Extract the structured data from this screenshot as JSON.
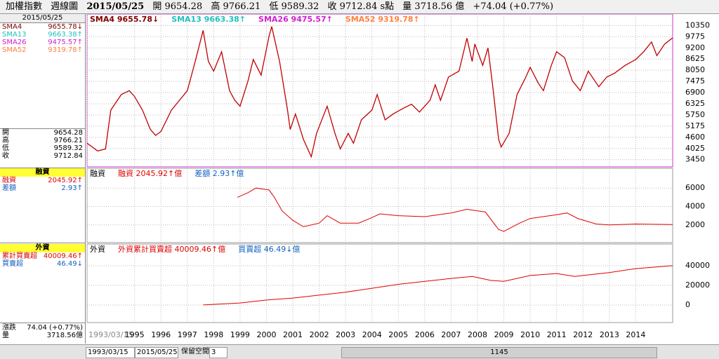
{
  "header": {
    "index": "加權指數",
    "period": "週線圖",
    "date": "2015/05/25",
    "open": "開 9654.28",
    "high": "高 9766.21",
    "low": "低 9589.32",
    "close": "收 9712.84 s點",
    "volume": "量 3718.56 億",
    "change": "+74.04 (+0.77%)"
  },
  "left_panel": {
    "date": "2015/05/25",
    "sma": [
      {
        "name": "SMA4",
        "value": "9655.78↓"
      },
      {
        "name": "SMA13",
        "value": "9663.38↑"
      },
      {
        "name": "SMA26",
        "value": "9475.57↑"
      },
      {
        "name": "SMA52",
        "value": "9319.78↑"
      }
    ],
    "ohlc": [
      {
        "name": "開",
        "value": "9654.28"
      },
      {
        "name": "高",
        "value": "9766.21"
      },
      {
        "name": "低",
        "value": "9589.32"
      },
      {
        "name": "收",
        "value": "9712.84"
      }
    ],
    "margin_title": "融資",
    "margin": [
      {
        "name": "融資",
        "value": "2045.92↑"
      },
      {
        "name": "差額",
        "value": "2.93↑"
      }
    ],
    "foreign_title": "外資",
    "foreign": [
      {
        "name": "累計買賣超",
        "value": "40009.46↑"
      },
      {
        "name": "買賣超",
        "value": "46.49↓"
      }
    ],
    "change": {
      "name": "漲跌",
      "value": "74.04 (+0.77%)"
    },
    "volume": {
      "name": "量",
      "value": "3718.56億"
    }
  },
  "legends": [
    [
      "SMA4 9655.78↓",
      "SMA13 9663.38↑",
      "SMA26 9475.57↑",
      "SMA52 9319.78↑"
    ],
    [
      "融資",
      "融資 2045.92↑億",
      "差額 2.93↑億"
    ],
    [
      "外資",
      "外資累計買賣超 40009.46↑億",
      "買賣超 46.49↓億"
    ]
  ],
  "legend_colors": [
    [
      "#800000",
      "#20c0c0",
      "#d020d0",
      "#ff8040"
    ],
    [
      "#000000",
      "#e00000",
      "#1060c0"
    ],
    [
      "#000000",
      "#e00000",
      "#1060c0"
    ]
  ],
  "chart_data": [
    {
      "type": "line",
      "xlim": [
        1993.2,
        2015.4
      ],
      "ylim": [
        3080,
        10940
      ],
      "grid": true,
      "xticks": [
        {
          "value": 1993.2,
          "label": "1993/03/15"
        },
        1995,
        1996,
        1997,
        1998,
        1999,
        2000,
        2001,
        2002,
        2003,
        2004,
        2005,
        2006,
        2007,
        2008,
        2009,
        2010,
        2011,
        2012,
        2013,
        2014
      ],
      "yticks": [
        3450,
        4025,
        4600,
        5175,
        5750,
        6325,
        6900,
        7475,
        8050,
        8625,
        9200,
        9775,
        10350
      ],
      "x": [
        1993.2,
        1993.6,
        1993.9,
        1994.1,
        1994.5,
        1994.8,
        1995.0,
        1995.3,
        1995.6,
        1995.8,
        1996.0,
        1996.4,
        1996.7,
        1997.0,
        1997.3,
        1997.6,
        1997.8,
        1998.0,
        1998.3,
        1998.6,
        1998.8,
        1999.0,
        1999.3,
        1999.5,
        1999.8,
        2000.1,
        2000.2,
        2000.5,
        2000.8,
        2000.9,
        2001.1,
        2001.4,
        2001.7,
        2001.9,
        2002.3,
        2002.6,
        2002.8,
        2003.1,
        2003.3,
        2003.6,
        2004.0,
        2004.2,
        2004.5,
        2004.8,
        2005.2,
        2005.5,
        2005.8,
        2006.2,
        2006.4,
        2006.6,
        2006.9,
        2007.3,
        2007.6,
        2007.8,
        2007.9,
        2008.2,
        2008.4,
        2008.6,
        2008.8,
        2008.9,
        2009.2,
        2009.5,
        2009.8,
        2010.0,
        2010.3,
        2010.5,
        2010.8,
        2011.0,
        2011.3,
        2011.6,
        2011.9,
        2012.2,
        2012.6,
        2012.9,
        2013.2,
        2013.6,
        2014.0,
        2014.3,
        2014.6,
        2014.8,
        2015.1,
        2015.4
      ],
      "series": [
        {
          "color": "#c00000",
          "values": [
            4300,
            3900,
            4000,
            6000,
            6800,
            7000,
            6700,
            6000,
            5000,
            4700,
            4900,
            6000,
            6500,
            7000,
            8500,
            10100,
            8500,
            8000,
            9000,
            7000,
            6500,
            6200,
            7500,
            8600,
            7800,
            9800,
            10300,
            8500,
            6000,
            5000,
            5800,
            4500,
            3600,
            4800,
            6200,
            4800,
            4000,
            4800,
            4300,
            5500,
            6000,
            6800,
            5500,
            5800,
            6100,
            6300,
            5900,
            6500,
            7300,
            6500,
            7700,
            8000,
            9700,
            8500,
            9400,
            8300,
            9200,
            7000,
            4500,
            4100,
            4800,
            6800,
            7600,
            8200,
            7400,
            7000,
            8300,
            9000,
            8700,
            7500,
            7000,
            8000,
            7200,
            7700,
            7900,
            8300,
            8600,
            9000,
            9500,
            8800,
            9400,
            9712.84
          ]
        }
      ]
    },
    {
      "type": "line",
      "xlim": [
        1993.2,
        2015.4
      ],
      "ylim": [
        80,
        8150
      ],
      "grid": true,
      "yticks": [
        2000,
        4000,
        6000
      ],
      "x": [
        1998.9,
        1999.3,
        1999.6,
        2000.1,
        2000.3,
        2000.6,
        2001.0,
        2001.4,
        2002.0,
        2002.3,
        2002.8,
        2003.5,
        2004.0,
        2004.3,
        2005.0,
        2006.0,
        2007.0,
        2007.6,
        2008.3,
        2008.8,
        2009.0,
        2009.6,
        2010.0,
        2011.0,
        2011.4,
        2011.8,
        2012.5,
        2013.0,
        2014.0,
        2015.4
      ],
      "series": [
        {
          "color": "#e00000",
          "values": [
            5000,
            5500,
            6000,
            5800,
            5000,
            3500,
            2500,
            1800,
            2200,
            3000,
            2200,
            2200,
            2800,
            3200,
            3000,
            2900,
            3300,
            3700,
            3400,
            1500,
            1300,
            2200,
            2700,
            3100,
            3300,
            2700,
            2100,
            2000,
            2100,
            2045.92
          ]
        }
      ]
    },
    {
      "type": "line",
      "xlim": [
        1993.2,
        2015.4
      ],
      "ylim": [
        -17900,
        62100
      ],
      "grid": true,
      "yticks": [
        0,
        20000,
        40000
      ],
      "x": [
        1997.6,
        1999,
        2000,
        2001,
        2002,
        2003,
        2004,
        2005,
        2006,
        2007,
        2007.8,
        2008.5,
        2009,
        2010,
        2011,
        2011.7,
        2012,
        2013,
        2014,
        2015.4
      ],
      "series": [
        {
          "color": "#e00000",
          "values": [
            0,
            2000,
            5000,
            7000,
            10000,
            13000,
            17000,
            21000,
            24000,
            27000,
            29000,
            25000,
            24000,
            30000,
            32000,
            29000,
            30000,
            33000,
            37000,
            40009.46
          ]
        }
      ]
    }
  ],
  "scrollbar": {
    "start": "1993/03/15",
    "end": "2015/05/25",
    "reserve": "保留空間",
    "reserve_value": "3",
    "count": "1145"
  }
}
